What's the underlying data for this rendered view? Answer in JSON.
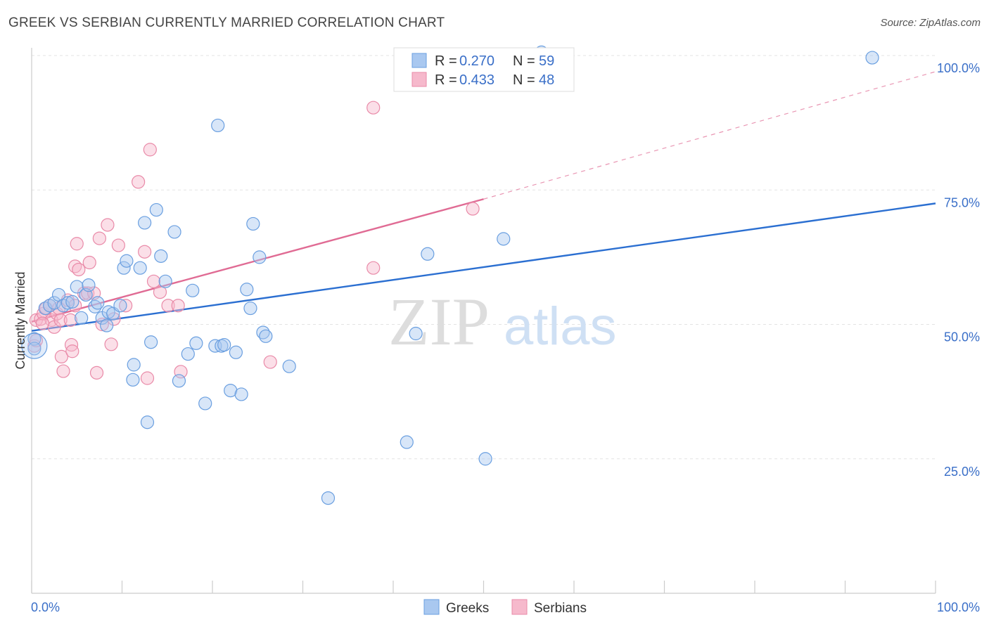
{
  "header": {
    "title": "GREEK VS SERBIAN CURRENTLY MARRIED CORRELATION CHART",
    "source": "Source: ZipAtlas.com"
  },
  "watermark": {
    "zip": "ZIP",
    "atlas": "atlas"
  },
  "legend_top": {
    "greeks": {
      "r_label": "R = ",
      "r_value": "0.270",
      "n_label": "N = ",
      "n_value": "59"
    },
    "serbians": {
      "r_label": "R = ",
      "r_value": "0.433",
      "n_label": "N = ",
      "n_value": "48"
    }
  },
  "colors": {
    "greeks_fill": "#a9c8f0",
    "greeks_stroke": "#6a9fe0",
    "greeks_line": "#2b6fd1",
    "serbians_fill": "#f6b9cc",
    "serbians_stroke": "#e98aa8",
    "serbians_line": "#e06b94",
    "grid": "#e3e3e3",
    "tick_text": "#3a6fc8"
  },
  "chart_data": {
    "type": "scatter",
    "title": "GREEK VS SERBIAN CURRENTLY MARRIED CORRELATION CHART",
    "xlabel": "",
    "ylabel": "Currently Married",
    "xlim": [
      0,
      100
    ],
    "ylim": [
      0,
      102
    ],
    "x_tick_labels": [
      "0.0%",
      "100.0%"
    ],
    "y_ticks": [
      25,
      50,
      75,
      100
    ],
    "y_tick_labels": [
      "25.0%",
      "50.0%",
      "75.0%",
      "100.0%"
    ],
    "grid": true,
    "legend": "bottom-center",
    "series": [
      {
        "name": "Greeks",
        "r": 0.27,
        "n": 59,
        "trend": {
          "x0": 0,
          "y0": 48.8,
          "x1": 100,
          "y1": 72.5
        },
        "points": [
          [
            0.3,
            47.3
          ],
          [
            0.3,
            45.5
          ],
          [
            1.5,
            53.0
          ],
          [
            2,
            53.5
          ],
          [
            2.5,
            54.0
          ],
          [
            3,
            55.5
          ],
          [
            3.5,
            53.5
          ],
          [
            4,
            54.0
          ],
          [
            4.5,
            54.2
          ],
          [
            5,
            57.0
          ],
          [
            5.5,
            51.2
          ],
          [
            6,
            55.5
          ],
          [
            6.3,
            57.3
          ],
          [
            7,
            53.3
          ],
          [
            7.3,
            54.0
          ],
          [
            7.8,
            51.2
          ],
          [
            8.3,
            49.8
          ],
          [
            8.5,
            52.3
          ],
          [
            9,
            52.0
          ],
          [
            9.8,
            53.5
          ],
          [
            10.2,
            60.5
          ],
          [
            10.5,
            61.8
          ],
          [
            11.2,
            39.7
          ],
          [
            11.3,
            42.5
          ],
          [
            12,
            60.5
          ],
          [
            12.5,
            68.9
          ],
          [
            12.8,
            31.8
          ],
          [
            13.2,
            46.7
          ],
          [
            13.8,
            71.3
          ],
          [
            14.3,
            62.7
          ],
          [
            14.8,
            58.0
          ],
          [
            15.8,
            67.2
          ],
          [
            16.3,
            39.5
          ],
          [
            17.3,
            44.5
          ],
          [
            17.8,
            56.3
          ],
          [
            18.2,
            46.5
          ],
          [
            19.2,
            35.3
          ],
          [
            20.3,
            46.0
          ],
          [
            20.6,
            87.0
          ],
          [
            21,
            46.0
          ],
          [
            21.3,
            46.2
          ],
          [
            22,
            37.7
          ],
          [
            22.6,
            44.8
          ],
          [
            23.2,
            37.0
          ],
          [
            23.8,
            56.5
          ],
          [
            24.2,
            53.0
          ],
          [
            24.5,
            68.7
          ],
          [
            25.2,
            62.5
          ],
          [
            25.6,
            48.5
          ],
          [
            25.9,
            47.8
          ],
          [
            28.5,
            42.2
          ],
          [
            32.8,
            17.7
          ],
          [
            41.5,
            28.1
          ],
          [
            42.5,
            48.3
          ],
          [
            43.8,
            63.1
          ],
          [
            50.2,
            25.0
          ],
          [
            52.2,
            65.9
          ],
          [
            56.4,
            100.6
          ],
          [
            93,
            99.6
          ]
        ]
      },
      {
        "name": "Serbians",
        "r": 0.433,
        "n": 48,
        "trend": {
          "x0": 0,
          "y0": 50.5,
          "x1": 50,
          "y1": 73.3,
          "dash_to_x": 100,
          "dash_to_y": 97
        },
        "points": [
          [
            0.3,
            46.0
          ],
          [
            0.5,
            50.8
          ],
          [
            1,
            51.0
          ],
          [
            1.3,
            52.0
          ],
          [
            1.6,
            53.0
          ],
          [
            2,
            53.5
          ],
          [
            2.2,
            50.8
          ],
          [
            2.5,
            49.5
          ],
          [
            2.8,
            52.0
          ],
          [
            3,
            53.0
          ],
          [
            3.2,
            50.8
          ],
          [
            3.3,
            44.0
          ],
          [
            3.5,
            41.3
          ],
          [
            4,
            54.5
          ],
          [
            4.3,
            50.8
          ],
          [
            4.4,
            46.2
          ],
          [
            4.5,
            45.0
          ],
          [
            4.8,
            53.5
          ],
          [
            4.8,
            60.8
          ],
          [
            5,
            65.0
          ],
          [
            5.2,
            60.2
          ],
          [
            5.8,
            55.8
          ],
          [
            6.2,
            55.8
          ],
          [
            6.4,
            61.5
          ],
          [
            6.9,
            55.8
          ],
          [
            7.2,
            41.0
          ],
          [
            7.5,
            66.0
          ],
          [
            7.8,
            50.0
          ],
          [
            8.4,
            68.5
          ],
          [
            8.8,
            46.3
          ],
          [
            9.1,
            51.0
          ],
          [
            9.6,
            64.7
          ],
          [
            10.4,
            53.5
          ],
          [
            11.8,
            76.5
          ],
          [
            12.5,
            63.5
          ],
          [
            12.8,
            40.0
          ],
          [
            13.1,
            82.5
          ],
          [
            13.5,
            58.0
          ],
          [
            14.2,
            56.0
          ],
          [
            15.1,
            53.5
          ],
          [
            16.2,
            53.5
          ],
          [
            16.5,
            41.2
          ],
          [
            26.4,
            43.0
          ],
          [
            37.8,
            60.5
          ],
          [
            37.8,
            90.3
          ],
          [
            48.8,
            71.5
          ],
          [
            0.5,
            47.0
          ],
          [
            1.2,
            50.2
          ]
        ]
      }
    ]
  },
  "bottom_legend": {
    "greeks": "Greeks",
    "serbians": "Serbians"
  }
}
